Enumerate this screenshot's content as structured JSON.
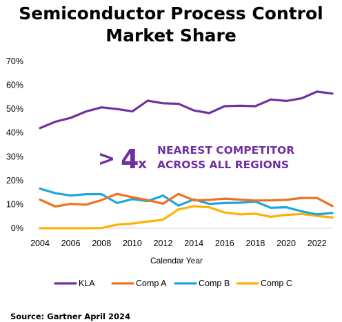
{
  "title_line1": "Semiconductor Process Control",
  "title_line2": "Market Share",
  "source": "Source: Gartner April 2024",
  "callout": {
    "gt": ">",
    "multiple": "4",
    "x": "x",
    "line1": "NEAREST COMPETITOR",
    "line2": "ACROSS ALL REGIONS"
  },
  "chart_data": {
    "type": "line",
    "title": "Semiconductor Process Control Market Share",
    "xlabel": "Calendar Year",
    "ylabel": "",
    "x": [
      2004,
      2005,
      2006,
      2007,
      2008,
      2009,
      2010,
      2011,
      2012,
      2013,
      2014,
      2015,
      2016,
      2017,
      2018,
      2019,
      2020,
      2021,
      2022,
      2023
    ],
    "x_ticks": [
      "2004",
      "2006",
      "2008",
      "2010",
      "2012",
      "2014",
      "2016",
      "2018",
      "2020",
      "2022"
    ],
    "y_ticks": [
      "0%",
      "10%",
      "20%",
      "30%",
      "40%",
      "50%",
      "60%",
      "70%"
    ],
    "ylim": [
      0,
      70
    ],
    "xlim": [
      2004,
      2023
    ],
    "grid": false,
    "legend_position": "bottom",
    "series": [
      {
        "name": "KLA",
        "color": "#7030a0",
        "values": [
          42,
          44.7,
          46.3,
          49,
          50.7,
          50,
          49,
          53.5,
          52.4,
          52.2,
          49.4,
          48.3,
          51.2,
          51.4,
          51.2,
          54,
          53.4,
          54.5,
          57.3,
          56.5
        ]
      },
      {
        "name": "Comp A",
        "color": "#f07020",
        "values": [
          12,
          9.1,
          10.2,
          9.9,
          11.8,
          14.4,
          13,
          11.8,
          10.3,
          14.4,
          11.7,
          11.9,
          12.4,
          12,
          11.6,
          11.7,
          11.9,
          12.7,
          12.7,
          9.3
        ]
      },
      {
        "name": "Comp B",
        "color": "#1aa7dc",
        "values": [
          16.6,
          14.7,
          13.7,
          14.3,
          14.3,
          10.6,
          12.2,
          11.4,
          13.7,
          9.5,
          12.1,
          10.2,
          10.6,
          10.7,
          11.2,
          8.6,
          8.8,
          7.1,
          5.8,
          6.4
        ]
      },
      {
        "name": "Comp C",
        "color": "#ffb000",
        "values": [
          0,
          0,
          0,
          0,
          0.1,
          1.5,
          2,
          2.8,
          3.6,
          7.9,
          9.2,
          8.8,
          6.6,
          5.8,
          6.1,
          4.8,
          5.6,
          6,
          5.2,
          4.5
        ]
      }
    ]
  }
}
